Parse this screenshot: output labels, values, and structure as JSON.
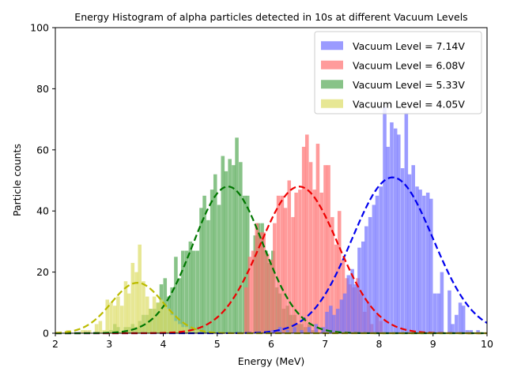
{
  "chart_data": {
    "type": "bar",
    "title": "Energy Histogram of alpha particles detected in 10s at different Vacuum Levels",
    "xlabel": "Energy (MeV)",
    "ylabel": "Particle counts",
    "xlim": [
      2,
      10
    ],
    "ylim": [
      0,
      100
    ],
    "x_ticks": [
      2,
      3,
      4,
      5,
      6,
      7,
      8,
      9,
      10
    ],
    "y_ticks": [
      0,
      20,
      40,
      60,
      80,
      100
    ],
    "grid": false,
    "legend_position": "top-right",
    "bin_width": 0.0667,
    "series": [
      {
        "name": "Vacuum Level = 7.14V",
        "color": "#7070ff",
        "fit_color": "#0000ee",
        "fit": {
          "mu": 8.25,
          "sigma": 0.75,
          "amplitude": 51
        },
        "bins": [
          [
            6.0,
            1
          ],
          [
            6.13,
            2
          ],
          [
            6.27,
            1
          ],
          [
            6.4,
            2
          ],
          [
            6.53,
            1
          ],
          [
            6.67,
            2
          ],
          [
            6.8,
            3
          ],
          [
            6.93,
            2
          ],
          [
            7.0,
            7
          ],
          [
            7.07,
            9
          ],
          [
            7.13,
            6
          ],
          [
            7.2,
            8
          ],
          [
            7.27,
            11
          ],
          [
            7.33,
            13
          ],
          [
            7.4,
            19
          ],
          [
            7.47,
            21
          ],
          [
            7.53,
            16
          ],
          [
            7.6,
            28
          ],
          [
            7.67,
            30
          ],
          [
            7.73,
            35
          ],
          [
            7.8,
            38
          ],
          [
            7.87,
            42
          ],
          [
            7.93,
            45
          ],
          [
            8.0,
            48
          ],
          [
            8.07,
            74
          ],
          [
            8.13,
            61
          ],
          [
            8.2,
            69
          ],
          [
            8.27,
            67
          ],
          [
            8.33,
            65
          ],
          [
            8.4,
            54
          ],
          [
            8.47,
            72
          ],
          [
            8.53,
            52
          ],
          [
            8.6,
            55
          ],
          [
            8.67,
            48
          ],
          [
            8.73,
            47
          ],
          [
            8.8,
            45
          ],
          [
            8.87,
            46
          ],
          [
            8.93,
            44
          ],
          [
            9.0,
            13
          ],
          [
            9.07,
            13
          ],
          [
            9.13,
            20
          ],
          [
            9.2,
            0
          ],
          [
            9.27,
            14
          ],
          [
            9.33,
            3
          ],
          [
            9.4,
            6
          ],
          [
            9.47,
            10
          ],
          [
            9.53,
            9
          ],
          [
            9.6,
            1
          ],
          [
            9.67,
            1
          ],
          [
            9.73,
            0
          ],
          [
            9.8,
            1
          ]
        ]
      },
      {
        "name": "Vacuum Level = 6.08V",
        "color": "#ff7070",
        "fit_color": "#ee0000",
        "fit": {
          "mu": 6.52,
          "sigma": 0.72,
          "amplitude": 48
        },
        "bins": [
          [
            5.5,
            15
          ],
          [
            5.57,
            25
          ],
          [
            5.63,
            27
          ],
          [
            5.7,
            36
          ],
          [
            5.77,
            33
          ],
          [
            5.83,
            33
          ],
          [
            5.9,
            26
          ],
          [
            5.97,
            24
          ],
          [
            6.03,
            36
          ],
          [
            6.1,
            45
          ],
          [
            6.17,
            45
          ],
          [
            6.23,
            41
          ],
          [
            6.3,
            50
          ],
          [
            6.37,
            38
          ],
          [
            6.43,
            46
          ],
          [
            6.5,
            47
          ],
          [
            6.57,
            61
          ],
          [
            6.63,
            65
          ],
          [
            6.7,
            56
          ],
          [
            6.77,
            47
          ],
          [
            6.83,
            62
          ],
          [
            6.9,
            46
          ],
          [
            6.97,
            55
          ],
          [
            7.03,
            55
          ],
          [
            7.1,
            38
          ],
          [
            7.17,
            29
          ],
          [
            7.23,
            40
          ],
          [
            7.3,
            24
          ],
          [
            7.37,
            18
          ],
          [
            7.43,
            16
          ],
          [
            7.5,
            15
          ],
          [
            7.57,
            18
          ],
          [
            7.63,
            13
          ],
          [
            7.7,
            7
          ],
          [
            7.77,
            10
          ],
          [
            7.83,
            3
          ],
          [
            7.93,
            6
          ],
          [
            8.0,
            4
          ],
          [
            8.07,
            0
          ]
        ]
      },
      {
        "name": "Vacuum Level = 5.33V",
        "color": "#55aa55",
        "fit_color": "#007700",
        "fit": {
          "mu": 5.2,
          "sigma": 0.65,
          "amplitude": 48
        },
        "bins": [
          [
            3.0,
            1
          ],
          [
            3.07,
            3
          ],
          [
            3.13,
            2
          ],
          [
            3.2,
            0
          ],
          [
            3.27,
            2
          ],
          [
            3.33,
            2
          ],
          [
            3.4,
            3
          ],
          [
            3.47,
            2
          ],
          [
            3.53,
            4
          ],
          [
            3.6,
            6
          ],
          [
            3.67,
            6
          ],
          [
            3.73,
            8
          ],
          [
            3.8,
            8
          ],
          [
            3.87,
            10
          ],
          [
            3.93,
            16
          ],
          [
            4.0,
            18
          ],
          [
            4.07,
            12
          ],
          [
            4.13,
            15
          ],
          [
            4.2,
            25
          ],
          [
            4.27,
            18
          ],
          [
            4.33,
            27
          ],
          [
            4.4,
            27
          ],
          [
            4.47,
            30
          ],
          [
            4.53,
            27
          ],
          [
            4.6,
            27
          ],
          [
            4.67,
            41
          ],
          [
            4.73,
            45
          ],
          [
            4.8,
            37
          ],
          [
            4.87,
            47
          ],
          [
            4.93,
            52
          ],
          [
            5.0,
            42
          ],
          [
            5.07,
            58
          ],
          [
            5.13,
            53
          ],
          [
            5.2,
            57
          ],
          [
            5.27,
            55
          ],
          [
            5.33,
            64
          ],
          [
            5.4,
            56
          ],
          [
            5.47,
            45
          ],
          [
            5.53,
            45
          ],
          [
            5.6,
            0
          ],
          [
            5.67,
            32
          ],
          [
            5.73,
            36
          ],
          [
            5.8,
            36
          ],
          [
            5.87,
            27
          ],
          [
            5.93,
            23
          ],
          [
            6.0,
            27
          ],
          [
            6.07,
            15
          ],
          [
            6.13,
            13
          ],
          [
            6.2,
            8
          ],
          [
            6.27,
            9
          ],
          [
            6.33,
            6
          ],
          [
            6.4,
            6
          ],
          [
            6.47,
            3
          ],
          [
            6.53,
            3
          ],
          [
            6.6,
            2
          ],
          [
            6.67,
            3
          ],
          [
            6.73,
            1
          ],
          [
            6.8,
            1
          ],
          [
            6.87,
            0
          ],
          [
            6.93,
            1
          ]
        ]
      },
      {
        "name": "Vacuum Level = 4.05V",
        "color": "#dddd66",
        "fit_color": "#bbbb00",
        "fit": {
          "mu": 3.52,
          "sigma": 0.48,
          "amplitude": 16.5
        },
        "bins": [
          [
            2.13,
            0
          ],
          [
            2.2,
            1
          ],
          [
            2.27,
            0
          ],
          [
            2.33,
            0
          ],
          [
            2.4,
            0
          ],
          [
            2.47,
            1
          ],
          [
            2.53,
            1
          ],
          [
            2.6,
            1
          ],
          [
            2.67,
            0
          ],
          [
            2.73,
            3
          ],
          [
            2.8,
            4
          ],
          [
            2.87,
            1
          ],
          [
            2.93,
            11
          ],
          [
            3.0,
            10
          ],
          [
            3.07,
            9
          ],
          [
            3.13,
            12
          ],
          [
            3.2,
            9
          ],
          [
            3.27,
            17
          ],
          [
            3.33,
            13
          ],
          [
            3.4,
            23
          ],
          [
            3.47,
            20
          ],
          [
            3.53,
            29
          ],
          [
            3.6,
            17
          ],
          [
            3.67,
            12
          ],
          [
            3.73,
            8
          ],
          [
            3.8,
            12
          ],
          [
            3.87,
            10
          ],
          [
            3.93,
            11
          ],
          [
            4.0,
            9
          ],
          [
            4.07,
            8
          ],
          [
            4.13,
            6
          ],
          [
            4.2,
            4
          ],
          [
            4.27,
            3
          ],
          [
            4.33,
            2
          ],
          [
            4.4,
            2
          ],
          [
            4.47,
            1
          ],
          [
            4.53,
            1
          ],
          [
            4.6,
            1
          ],
          [
            4.67,
            0
          ]
        ]
      }
    ]
  }
}
